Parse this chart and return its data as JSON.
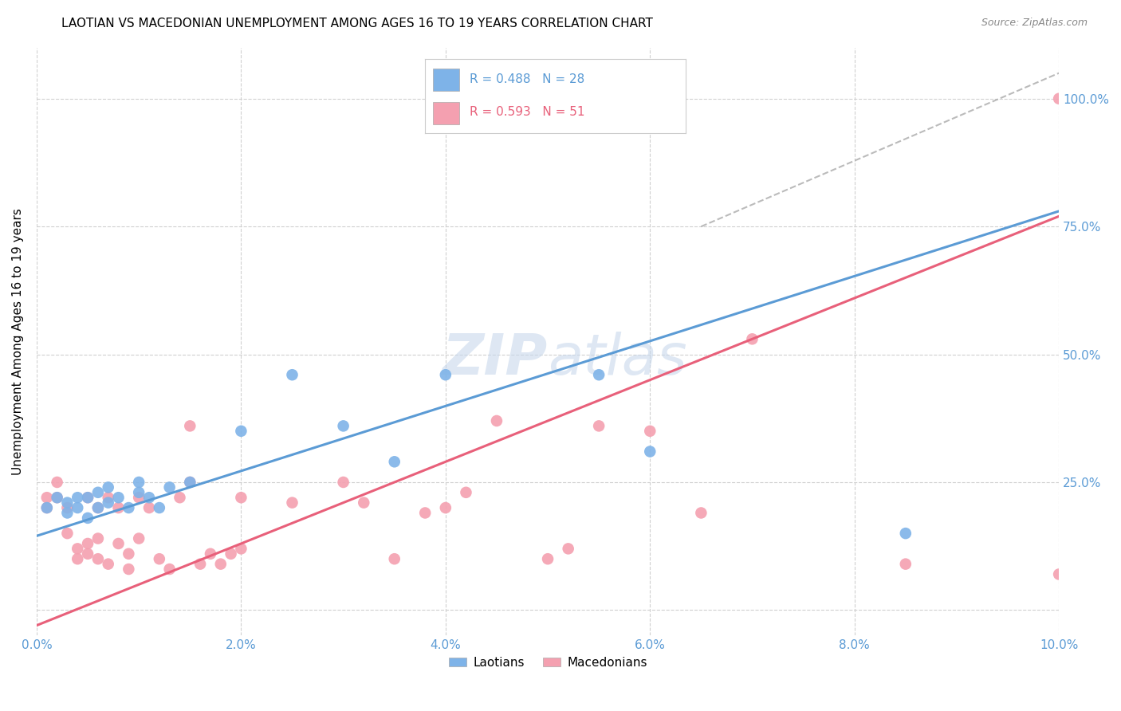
{
  "title": "LAOTIAN VS MACEDONIAN UNEMPLOYMENT AMONG AGES 16 TO 19 YEARS CORRELATION CHART",
  "source": "Source: ZipAtlas.com",
  "ylabel": "Unemployment Among Ages 16 to 19 years",
  "legend_label1": "Laotians",
  "legend_label2": "Macedonians",
  "r1": 0.488,
  "n1": 28,
  "r2": 0.593,
  "n2": 51,
  "color_laotian": "#7EB3E8",
  "color_macedonian": "#F4A0B0",
  "color_text_blue": "#5B9BD5",
  "color_text_pink": "#E8607A",
  "color_grid": "#D0D0D0",
  "watermark_color": "#C8D8EC",
  "background_color": "#FFFFFF",
  "laotian_x": [
    0.001,
    0.002,
    0.003,
    0.003,
    0.004,
    0.004,
    0.005,
    0.005,
    0.006,
    0.006,
    0.007,
    0.007,
    0.008,
    0.009,
    0.01,
    0.01,
    0.011,
    0.012,
    0.013,
    0.015,
    0.02,
    0.025,
    0.03,
    0.035,
    0.04,
    0.055,
    0.06,
    0.085
  ],
  "laotian_y": [
    0.2,
    0.22,
    0.19,
    0.21,
    0.2,
    0.22,
    0.18,
    0.22,
    0.2,
    0.23,
    0.21,
    0.24,
    0.22,
    0.2,
    0.23,
    0.25,
    0.22,
    0.2,
    0.24,
    0.25,
    0.35,
    0.46,
    0.36,
    0.29,
    0.46,
    0.46,
    0.31,
    0.15
  ],
  "macedonian_x": [
    0.001,
    0.001,
    0.002,
    0.002,
    0.003,
    0.003,
    0.004,
    0.004,
    0.005,
    0.005,
    0.005,
    0.006,
    0.006,
    0.006,
    0.007,
    0.007,
    0.008,
    0.008,
    0.009,
    0.009,
    0.01,
    0.01,
    0.011,
    0.012,
    0.013,
    0.014,
    0.015,
    0.015,
    0.016,
    0.017,
    0.018,
    0.019,
    0.02,
    0.02,
    0.025,
    0.03,
    0.032,
    0.035,
    0.038,
    0.04,
    0.042,
    0.045,
    0.05,
    0.052,
    0.055,
    0.06,
    0.065,
    0.07,
    0.085,
    0.1,
    0.1
  ],
  "macedonian_y": [
    0.2,
    0.22,
    0.22,
    0.25,
    0.15,
    0.2,
    0.12,
    0.1,
    0.11,
    0.13,
    0.22,
    0.1,
    0.14,
    0.2,
    0.09,
    0.22,
    0.13,
    0.2,
    0.08,
    0.11,
    0.22,
    0.14,
    0.2,
    0.1,
    0.08,
    0.22,
    0.25,
    0.36,
    0.09,
    0.11,
    0.09,
    0.11,
    0.22,
    0.12,
    0.21,
    0.25,
    0.21,
    0.1,
    0.19,
    0.2,
    0.23,
    0.37,
    0.1,
    0.12,
    0.36,
    0.35,
    0.19,
    0.53,
    0.09,
    0.07,
    1.0
  ],
  "xlim": [
    0.0,
    0.1
  ],
  "ylim": [
    -0.05,
    1.1
  ],
  "xticks": [
    0.0,
    0.02,
    0.04,
    0.06,
    0.08,
    0.1
  ],
  "yticks": [
    0.0,
    0.25,
    0.5,
    0.75,
    1.0
  ],
  "ytick_labels": [
    "",
    "25.0%",
    "50.0%",
    "75.0%",
    "100.0%"
  ],
  "figsize": [
    14.06,
    8.92
  ],
  "dpi": 100,
  "blue_line_x0": 0.0,
  "blue_line_y0": 0.145,
  "blue_line_x1": 0.1,
  "blue_line_y1": 0.78,
  "pink_line_x0": 0.0,
  "pink_line_y0": -0.03,
  "pink_line_x1": 0.1,
  "pink_line_y1": 0.77,
  "dash_line_x0": 0.065,
  "dash_line_y0": 0.75,
  "dash_line_x1": 0.1,
  "dash_line_y1": 1.05
}
